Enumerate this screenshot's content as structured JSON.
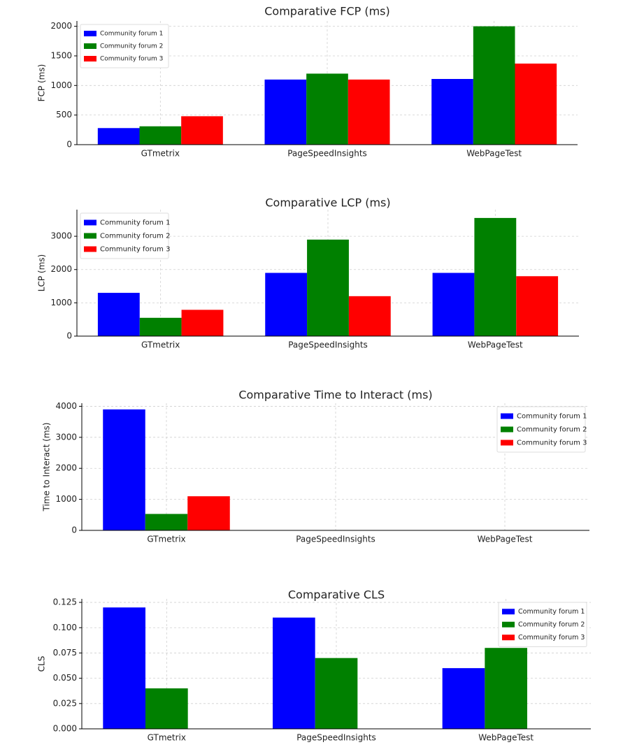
{
  "chart_data": [
    {
      "type": "bar",
      "title": "Comparative FCP (ms)",
      "y_label": "FCP (ms)",
      "categories": [
        "GTmetrix",
        "PageSpeedInsights",
        "WebPageTest"
      ],
      "series": [
        {
          "name": "Community forum 1",
          "color": "#0000ff",
          "values": [
            280,
            1100,
            1110
          ]
        },
        {
          "name": "Community forum 2",
          "color": "#008000",
          "values": [
            310,
            1200,
            2000
          ]
        },
        {
          "name": "Community forum 3",
          "color": "#ff0000",
          "values": [
            480,
            1100,
            1370
          ]
        }
      ],
      "ylim": [
        0,
        2090
      ],
      "yticks": [
        0,
        500,
        1000,
        1500,
        2000
      ],
      "grid": true,
      "legend": "upper left"
    },
    {
      "type": "bar",
      "title": "Comparative LCP (ms)",
      "y_label": "LCP (ms)",
      "categories": [
        "GTmetrix",
        "PageSpeedInsights",
        "WebPageTest"
      ],
      "series": [
        {
          "name": "Community forum 1",
          "color": "#0000ff",
          "values": [
            1300,
            1900,
            1900
          ]
        },
        {
          "name": "Community forum 2",
          "color": "#008000",
          "values": [
            550,
            2900,
            3550
          ]
        },
        {
          "name": "Community forum 3",
          "color": "#ff0000",
          "values": [
            790,
            1200,
            1800
          ]
        }
      ],
      "ylim": [
        0,
        3800
      ],
      "yticks": [
        0,
        1000,
        2000,
        3000
      ],
      "grid": true,
      "legend": "upper left"
    },
    {
      "type": "bar",
      "title": "Comparative Time to Interact (ms)",
      "y_label": "Time to Interact (ms)",
      "categories": [
        "GTmetrix",
        "PageSpeedInsights",
        "WebPageTest"
      ],
      "series": [
        {
          "name": "Community forum 1",
          "color": "#0000ff",
          "values": [
            3900,
            null,
            null
          ]
        },
        {
          "name": "Community forum 2",
          "color": "#008000",
          "values": [
            530,
            null,
            null
          ]
        },
        {
          "name": "Community forum 3",
          "color": "#ff0000",
          "values": [
            1100,
            null,
            null
          ]
        }
      ],
      "ylim": [
        0,
        4100
      ],
      "yticks": [
        0,
        1000,
        2000,
        3000,
        4000
      ],
      "grid": true,
      "legend": "upper right"
    },
    {
      "type": "bar",
      "title": "Comparative CLS",
      "y_label": "CLS",
      "categories": [
        "GTmetrix",
        "PageSpeedInsights",
        "WebPageTest"
      ],
      "series": [
        {
          "name": "Community forum 1",
          "color": "#0000ff",
          "values": [
            0.12,
            0.11,
            0.06
          ]
        },
        {
          "name": "Community forum 2",
          "color": "#008000",
          "values": [
            0.04,
            0.07,
            0.08
          ]
        },
        {
          "name": "Community forum 3",
          "color": "#ff0000",
          "values": [
            null,
            null,
            null
          ]
        }
      ],
      "ylim": [
        0,
        0.1285
      ],
      "yticks": [
        {
          "value": 0,
          "label": "0.000"
        },
        {
          "value": 0.025,
          "label": "0.025"
        },
        {
          "value": 0.05,
          "label": "0.050"
        },
        {
          "value": 0.075,
          "label": "0.075"
        },
        {
          "value": 0.1,
          "label": "0.100"
        },
        {
          "value": 0.125,
          "label": "0.125"
        }
      ],
      "grid": true,
      "legend": "upper right"
    }
  ]
}
